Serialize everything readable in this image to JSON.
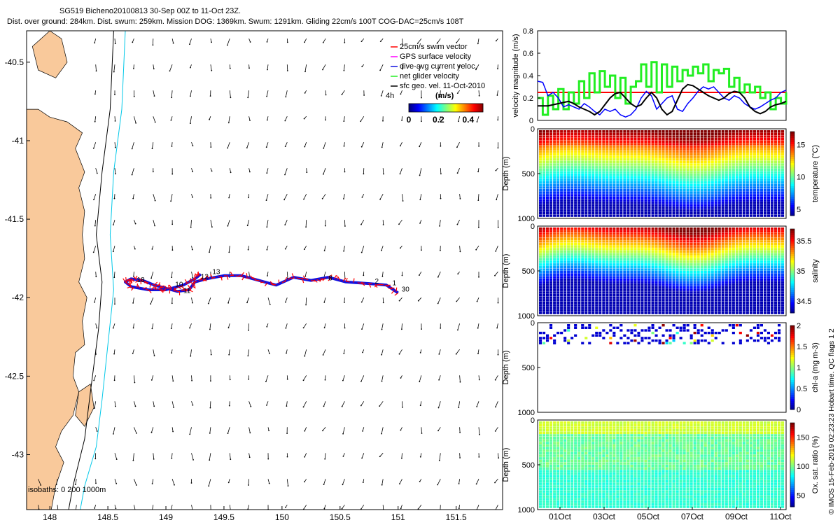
{
  "header": {
    "line1": "SG519 Bicheno20100813 30-Sep 00Z to 11-Oct 23Z.",
    "line2": "Dist. over ground: 284km. Dist. swum: 259km. Mission DOG: 1369km. Swum: 1291km. Gliding 22cm/s 100T COG-DAC=25cm/s 108T"
  },
  "credit": "© IMOS 15-Feb-2019 02:23:23 Hobart time. QC flags 1 2",
  "colors": {
    "land": "#f9c99b",
    "track": "#1010e0",
    "vec": "#ff0000",
    "isobath200": "#000000",
    "isobath1000": "#00c8e8",
    "limit": "#ff0000",
    "net": "#22ee22",
    "dac": "#0000ff",
    "sfc": "#000000"
  },
  "chart_data": [
    {
      "type": "scatter",
      "name": "map",
      "xlim": [
        147.8,
        151.9
      ],
      "ylim": [
        -43.35,
        -40.3
      ],
      "xticks": [
        "148",
        "148.5",
        "149",
        "149.5",
        "150",
        "150.5",
        "151",
        "151.5"
      ],
      "yticks": [
        "-40.5",
        "-41",
        "-41.5",
        "-42",
        "-42.5",
        "-43"
      ],
      "isobaths_label": "isobaths: 0  200  1000m",
      "legend": [
        "25cm/s swim vector",
        "GPS surface velocity",
        "dive-avg current veloc.",
        "net glider velocity",
        "sfc geo. vel. 11-Oct-2010"
      ],
      "colorbar": {
        "label": "(m/s)",
        "note": "4h",
        "ticks": [
          "0",
          "0.2",
          "0.4"
        ],
        "range": [
          0,
          0.5
        ]
      },
      "track_x": [
        151.0,
        150.9,
        150.75,
        150.55,
        150.4,
        150.25,
        150.1,
        149.95,
        149.8,
        149.65,
        149.5,
        149.35,
        149.25,
        149.2,
        149.1,
        149.0,
        148.9,
        148.8,
        148.7,
        148.65,
        148.7,
        148.85,
        149.0,
        149.15,
        149.25,
        149.3
      ],
      "track_y": [
        -41.97,
        -41.92,
        -41.91,
        -41.9,
        -41.87,
        -41.89,
        -41.87,
        -41.92,
        -41.89,
        -41.86,
        -41.86,
        -41.88,
        -41.9,
        -41.95,
        -41.96,
        -41.94,
        -41.92,
        -41.89,
        -41.88,
        -41.9,
        -41.93,
        -41.95,
        -41.95,
        -41.92,
        -41.88,
        -41.85
      ],
      "day_labels": [
        {
          "t": "1",
          "x": 150.95,
          "y": -41.92
        },
        {
          "t": "2",
          "x": 150.8,
          "y": -41.91
        },
        {
          "t": "8",
          "x": 150.4,
          "y": -41.89
        },
        {
          "t": "13",
          "x": 149.4,
          "y": -41.85
        },
        {
          "t": "12",
          "x": 149.3,
          "y": -41.88
        },
        {
          "t": "10",
          "x": 149.08,
          "y": -41.93
        },
        {
          "t": "11",
          "x": 149.15,
          "y": -41.97
        },
        {
          "t": "18",
          "x": 148.75,
          "y": -41.9
        },
        {
          "t": "30",
          "x": 151.03,
          "y": -41.96
        }
      ]
    },
    {
      "type": "line",
      "name": "velocity",
      "ylabel": "velocity magnitude (m/s)",
      "ylim": [
        0,
        0.8
      ],
      "yticks": [
        "0",
        "0.2",
        "0.4",
        "0.6",
        "0.8"
      ],
      "limit": 0.25,
      "series": [
        {
          "values": [
            0.35,
            0.34,
            0.22,
            0.25,
            0.2,
            0.12,
            0.14,
            0.12,
            0.1,
            0.15,
            0.12,
            0.08,
            0.05,
            0.1,
            0.08,
            0.1,
            0.05,
            0.03,
            0.05,
            0.1,
            0.2,
            0.26,
            0.22,
            0.1,
            0.15,
            0.2,
            0.22,
            0.1,
            0.08,
            0.15,
            0.2,
            0.26,
            0.3,
            0.28,
            0.3,
            0.25,
            0.2,
            0.18,
            0.22,
            0.2,
            0.15,
            0.12,
            0.1,
            0.12,
            0.15,
            0.18,
            0.2,
            0.25,
            0.27
          ]
        },
        {
          "values": [
            0.13,
            0.13,
            0.13,
            0.14,
            0.15,
            0.16,
            0.17,
            0.15,
            0.12,
            0.1,
            0.08,
            0.05,
            0.08,
            0.14,
            0.2,
            0.24,
            0.25,
            0.2,
            0.15,
            0.12,
            0.14,
            0.2,
            0.25,
            0.2,
            0.1,
            0.05,
            0.08,
            0.18,
            0.28,
            0.32,
            0.31,
            0.28,
            0.25,
            0.22,
            0.2,
            0.18,
            0.2,
            0.24,
            0.26,
            0.25,
            0.2,
            0.12,
            0.08,
            0.06,
            0.08,
            0.12,
            0.14,
            0.15,
            0.17
          ]
        },
        {
          "values": [
            0.2,
            0.05,
            0.22,
            0.1,
            0.28,
            0.1,
            0.25,
            0.15,
            0.35,
            0.2,
            0.42,
            0.25,
            0.44,
            0.3,
            0.4,
            0.2,
            0.38,
            0.15,
            0.3,
            0.35,
            0.5,
            0.3,
            0.52,
            0.25,
            0.5,
            0.3,
            0.48,
            0.35,
            0.45,
            0.4,
            0.48,
            0.42,
            0.5,
            0.35,
            0.45,
            0.42,
            0.46,
            0.3,
            0.38,
            0.25,
            0.32,
            0.25,
            0.3,
            0.2,
            0.25,
            0.1,
            0.2,
            0.15,
            0.25
          ]
        }
      ]
    },
    {
      "type": "heatmap",
      "name": "temperature",
      "ylabel": "Depth (m)",
      "cblabel": "temperature (°C)",
      "cbticks": [
        "5",
        "10",
        "15"
      ],
      "cbrange": [
        4,
        17
      ],
      "ylim": [
        1000,
        0
      ],
      "yticks": [
        "0",
        "500",
        "1000"
      ]
    },
    {
      "type": "heatmap",
      "name": "salinity",
      "ylabel": "Depth (m)",
      "cblabel": "salinity",
      "cbticks": [
        "34.5",
        "35",
        "35.5"
      ],
      "cbrange": [
        34.3,
        35.7
      ],
      "ylim": [
        1000,
        0
      ],
      "yticks": [
        "0",
        "500",
        "1000"
      ]
    },
    {
      "type": "scatter",
      "name": "chla",
      "ylabel": "Depth (m)",
      "cblabel": "chl-a (mg m-3)",
      "cbticks": [
        "0",
        "0.5",
        "1",
        "1.5",
        "2"
      ],
      "cbrange": [
        0,
        2
      ],
      "ylim": [
        1000,
        0
      ],
      "yticks": [
        "0",
        "500",
        "1000"
      ]
    },
    {
      "type": "heatmap",
      "name": "oxygen",
      "ylabel": "Depth (m)",
      "cblabel": "Ox. sat. ratio (%)",
      "cbticks": [
        "50",
        "100",
        "150"
      ],
      "cbrange": [
        30,
        175
      ],
      "ylim": [
        1000,
        0
      ],
      "yticks": [
        "0",
        "500",
        "1000"
      ],
      "xticks": [
        "01Oct",
        "03Oct",
        "05Oct",
        "07Oct",
        "09Oct",
        "11Oct"
      ]
    }
  ]
}
